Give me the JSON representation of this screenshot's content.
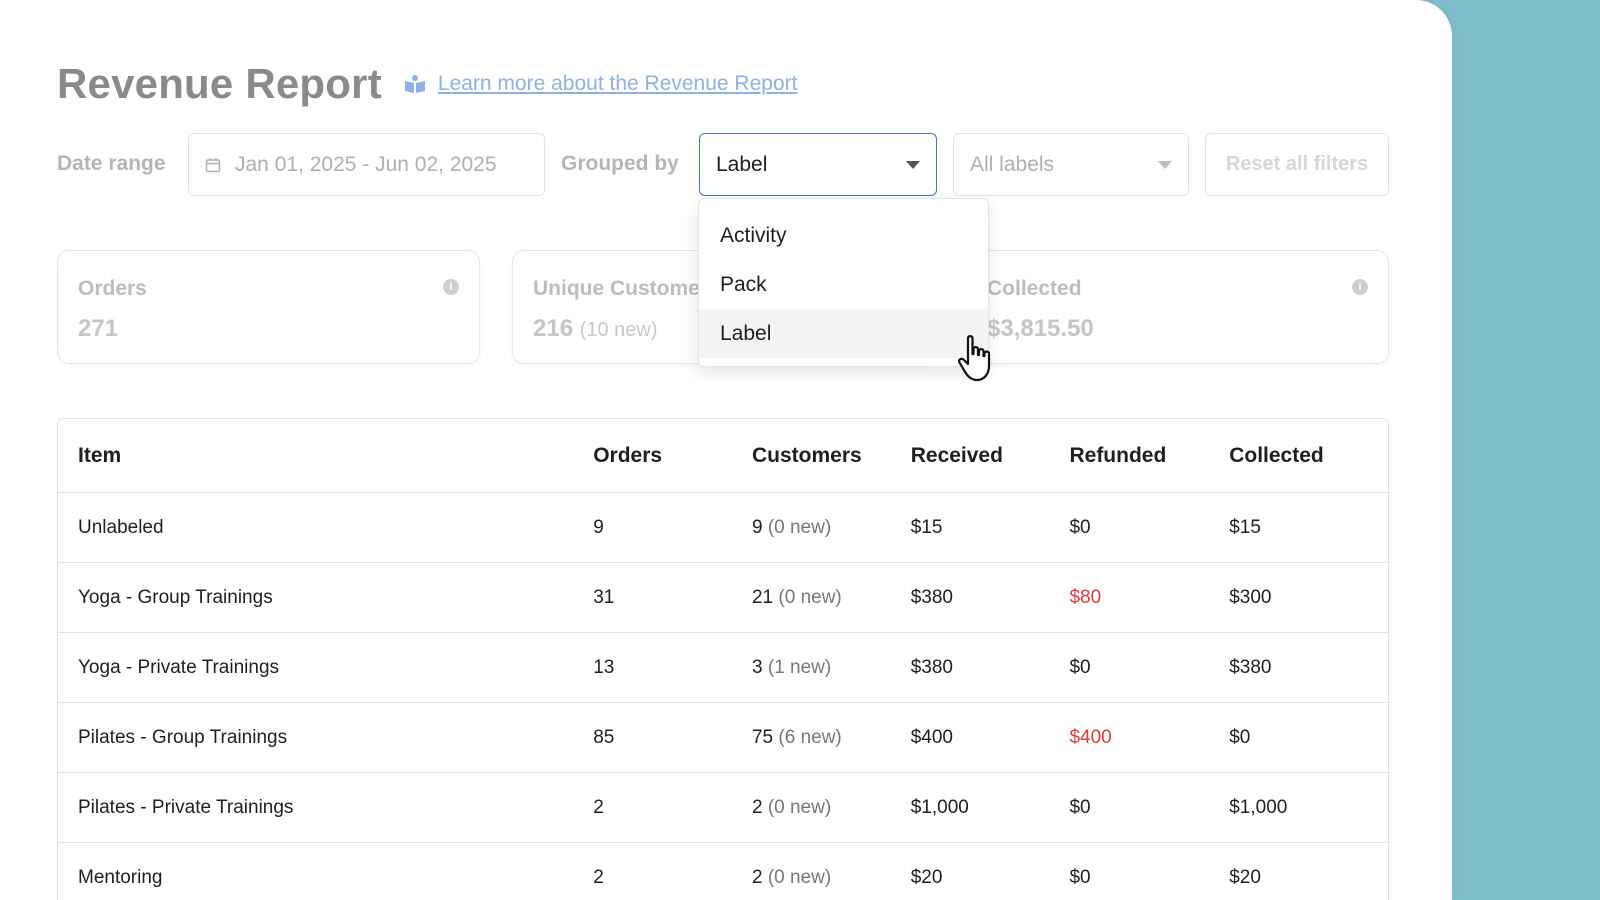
{
  "header": {
    "title": "Revenue Report",
    "learn_more": "Learn more about the Revenue Report"
  },
  "filters": {
    "date_range_label": "Date range",
    "date_range_value": "Jan 01, 2025 - Jun 02, 2025",
    "grouped_by_label": "Grouped by",
    "grouped_by_value": "Label",
    "labels_value": "All labels",
    "reset_label": "Reset all filters"
  },
  "dropdown": {
    "options": [
      "Activity",
      "Pack",
      "Label"
    ],
    "hovered_index": 2
  },
  "stats": {
    "orders": {
      "label": "Orders",
      "value": "271"
    },
    "customers": {
      "label": "Unique Custome",
      "value": "216",
      "sub": "(10 new)"
    },
    "collected": {
      "label": "Collected",
      "value": "$3,815.50"
    }
  },
  "table": {
    "columns": [
      "Item",
      "Orders",
      "Customers",
      "Received",
      "Refunded",
      "Collected"
    ],
    "rows": [
      {
        "item": "Unlabeled",
        "orders": "9",
        "customers": "9",
        "new": "(0 new)",
        "received": "$15",
        "refunded": "$0",
        "collected": "$15",
        "refund_flag": false
      },
      {
        "item": "Yoga - Group Trainings",
        "orders": "31",
        "customers": "21",
        "new": "(0 new)",
        "received": "$380",
        "refunded": "$80",
        "collected": "$300",
        "refund_flag": true
      },
      {
        "item": "Yoga - Private Trainings",
        "orders": "13",
        "customers": "3",
        "new": "(1 new)",
        "received": "$380",
        "refunded": "$0",
        "collected": "$380",
        "refund_flag": false
      },
      {
        "item": "Pilates - Group Trainings",
        "orders": "85",
        "customers": "75",
        "new": "(6 new)",
        "received": "$400",
        "refunded": "$400",
        "collected": "$0",
        "refund_flag": true
      },
      {
        "item": "Pilates - Private Trainings",
        "orders": "2",
        "customers": "2",
        "new": "(0 new)",
        "received": "$1,000",
        "refunded": "$0",
        "collected": "$1,000",
        "refund_flag": false
      },
      {
        "item": "Mentoring",
        "orders": "2",
        "customers": "2",
        "new": "(0 new)",
        "received": "$20",
        "refunded": "$0",
        "collected": "$20",
        "refund_flag": false
      }
    ]
  },
  "colors": {
    "accent": "#3a7bd5",
    "link": "#8fb0e8",
    "refund": "#e53935",
    "side_panel": "#7fbfcb"
  }
}
